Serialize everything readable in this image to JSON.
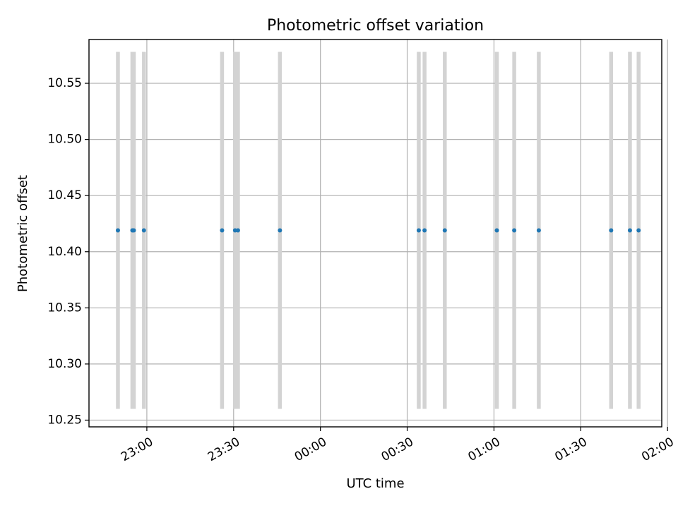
{
  "chart_data": {
    "type": "scatter",
    "title": "Photometric offset variation",
    "xlabel": "UTC time",
    "ylabel": "Photometric offset",
    "x_axis": {
      "unit": "minutes",
      "reference": "22:00 UTC",
      "range": [
        40,
        238
      ],
      "ticks": [
        {
          "value": 60,
          "label": "23:00"
        },
        {
          "value": 90,
          "label": "23:30"
        },
        {
          "value": 120,
          "label": "00:00"
        },
        {
          "value": 150,
          "label": "00:30"
        },
        {
          "value": 180,
          "label": "01:00"
        },
        {
          "value": 210,
          "label": "01:30"
        },
        {
          "value": 240,
          "label": "02:00"
        }
      ],
      "tick_rotation_deg": 30
    },
    "y_axis": {
      "range": [
        10.244,
        10.589
      ],
      "ticks": [
        {
          "value": 10.25,
          "label": "10.25"
        },
        {
          "value": 10.3,
          "label": "10.30"
        },
        {
          "value": 10.35,
          "label": "10.35"
        },
        {
          "value": 10.4,
          "label": "10.40"
        },
        {
          "value": 10.45,
          "label": "10.45"
        },
        {
          "value": 10.5,
          "label": "10.50"
        },
        {
          "value": 10.55,
          "label": "10.55"
        }
      ]
    },
    "grid": true,
    "colors": {
      "point": "#1f77b4",
      "errorbar": "#d3d3d3"
    },
    "points": [
      {
        "time": "22:50",
        "y": 10.419,
        "yerr_low": 10.26,
        "yerr_high": 10.578
      },
      {
        "time": "22:55",
        "y": 10.419,
        "yerr_low": 10.26,
        "yerr_high": 10.578
      },
      {
        "time": "22:55:30",
        "y": 10.419,
        "yerr_low": 10.26,
        "yerr_high": 10.578
      },
      {
        "time": "22:59",
        "y": 10.419,
        "yerr_low": 10.26,
        "yerr_high": 10.578
      },
      {
        "time": "23:26",
        "y": 10.419,
        "yerr_low": 10.26,
        "yerr_high": 10.578
      },
      {
        "time": "23:30:30",
        "y": 10.419,
        "yerr_low": 10.26,
        "yerr_high": 10.578
      },
      {
        "time": "23:31:30",
        "y": 10.419,
        "yerr_low": 10.26,
        "yerr_high": 10.578
      },
      {
        "time": "23:46",
        "y": 10.419,
        "yerr_low": 10.26,
        "yerr_high": 10.578
      },
      {
        "time": "00:34",
        "y": 10.419,
        "yerr_low": 10.26,
        "yerr_high": 10.578
      },
      {
        "time": "00:36",
        "y": 10.419,
        "yerr_low": 10.26,
        "yerr_high": 10.578
      },
      {
        "time": "00:43",
        "y": 10.419,
        "yerr_low": 10.26,
        "yerr_high": 10.578
      },
      {
        "time": "01:01",
        "y": 10.419,
        "yerr_low": 10.26,
        "yerr_high": 10.578
      },
      {
        "time": "01:07",
        "y": 10.419,
        "yerr_low": 10.26,
        "yerr_high": 10.578
      },
      {
        "time": "01:15:30",
        "y": 10.419,
        "yerr_low": 10.26,
        "yerr_high": 10.578
      },
      {
        "time": "01:40:30",
        "y": 10.419,
        "yerr_low": 10.26,
        "yerr_high": 10.578
      },
      {
        "time": "01:47",
        "y": 10.419,
        "yerr_low": 10.26,
        "yerr_high": 10.578
      },
      {
        "time": "01:50",
        "y": 10.419,
        "yerr_low": 10.26,
        "yerr_high": 10.578
      }
    ]
  }
}
